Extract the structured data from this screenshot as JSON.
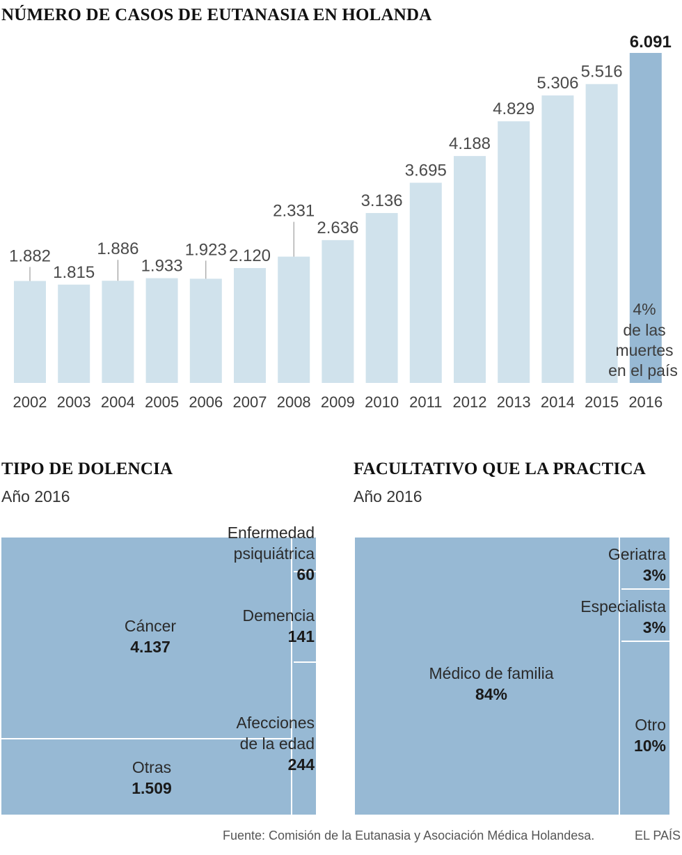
{
  "main_title": "NÚMERO DE CASOS DE EUTANASIA EN HOLANDA",
  "bar_note": [
    "4%",
    "de las",
    "muertes",
    "en el país"
  ],
  "dolencia": {
    "title": "TIPO DE DOLENCIA",
    "subtitle": "Año 2016",
    "cancer": {
      "label": "Cáncer",
      "value": "4.137"
    },
    "otras": {
      "label": "Otras",
      "value": "1.509"
    },
    "psiquiatrica": {
      "label_1": "Enfermedad",
      "label_2": "psiquiátrica",
      "value": "60"
    },
    "demencia": {
      "label": "Demencia",
      "value": "141"
    },
    "edad": {
      "label_1": "Afecciones",
      "label_2": "de la edad",
      "value": "244"
    }
  },
  "facultativo": {
    "title": "FACULTATIVO QUE LA PRACTICA",
    "subtitle": "Año 2016",
    "medico": {
      "label": "Médico de familia",
      "value": "84%"
    },
    "geriatra": {
      "label": "Geriatra",
      "value": "3%"
    },
    "especialista": {
      "label": "Especialista",
      "value": "3%"
    },
    "otro": {
      "label": "Otro",
      "value": "10%"
    }
  },
  "source": "Fuente: Comisión de la Eutanasia y Asociación Médica Holandesa.",
  "brand": "EL PAÍS",
  "colors": {
    "bar": "#d0e2ec",
    "bar_highlight": "#97b9d4",
    "treemap": "#97b9d4",
    "divider": "#ffffff"
  },
  "chart_data": [
    {
      "type": "bar",
      "title": "NÚMERO DE CASOS DE EUTANASIA EN HOLANDA",
      "categories": [
        "2002",
        "2003",
        "2004",
        "2005",
        "2006",
        "2007",
        "2008",
        "2009",
        "2010",
        "2011",
        "2012",
        "2013",
        "2014",
        "2015",
        "2016"
      ],
      "values": [
        1882,
        1815,
        1886,
        1933,
        1923,
        2120,
        2331,
        2636,
        3136,
        3695,
        4188,
        4829,
        5306,
        5516,
        6091
      ],
      "value_labels": [
        "1.882",
        "1.815",
        "1.886",
        "1.933",
        "1.923",
        "2.120",
        "2.331",
        "2.636",
        "3.136",
        "3.695",
        "4.188",
        "4.829",
        "5.306",
        "5.516",
        "6.091"
      ],
      "highlight_index": 14,
      "xlabel": "",
      "ylabel": "",
      "ylim": [
        0,
        6091
      ]
    },
    {
      "type": "treemap",
      "title": "TIPO DE DOLENCIA",
      "subtitle": "Año 2016",
      "categories": [
        "Cáncer",
        "Otras",
        "Enfermedad psiquiátrica",
        "Demencia",
        "Afecciones de la edad"
      ],
      "values": [
        4137,
        1509,
        60,
        141,
        244
      ]
    },
    {
      "type": "treemap",
      "title": "FACULTATIVO QUE LA PRACTICA",
      "subtitle": "Año 2016",
      "categories": [
        "Médico de familia",
        "Geriatra",
        "Especialista",
        "Otro"
      ],
      "values": [
        84,
        3,
        3,
        10
      ],
      "unit": "%"
    }
  ]
}
